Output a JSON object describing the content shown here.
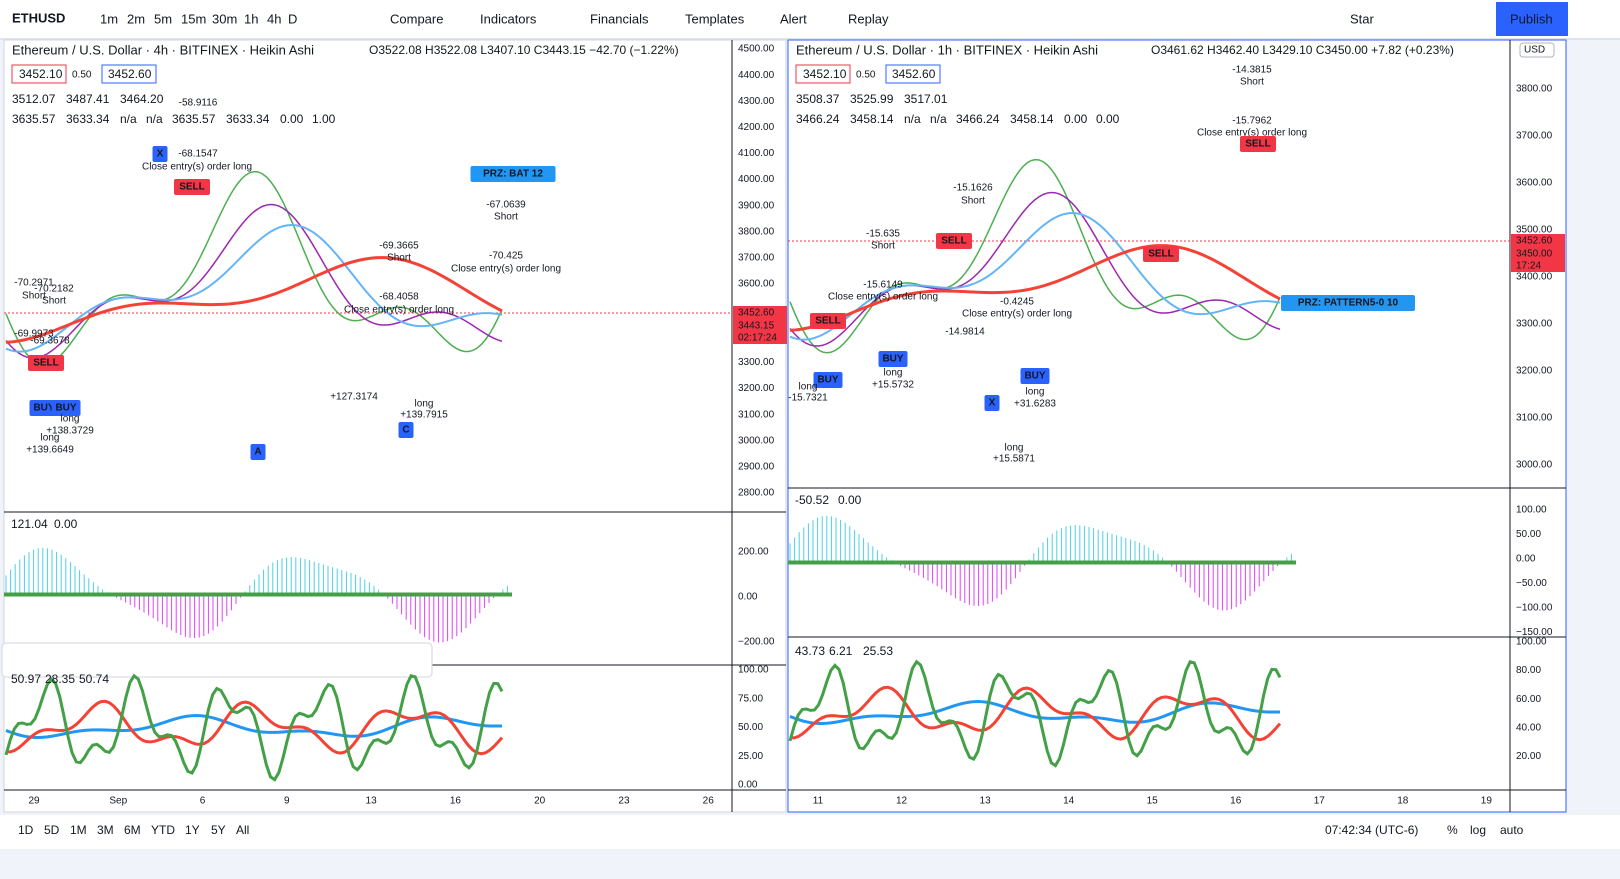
{
  "toolbar": {
    "symbol": "ETHUSD",
    "intervals": [
      "1m",
      "2m",
      "5m",
      "15m",
      "30m",
      "1h",
      "4h",
      "D"
    ],
    "buttons": [
      "Compare",
      "Indicators",
      "Financials",
      "Templates",
      "Alert",
      "Replay"
    ],
    "star": "Star",
    "publish": "Publish"
  },
  "left_chart": {
    "title": "Ethereum / U.S. Dollar · 4h · BITFINEX · Heikin Ashi",
    "ohlc": "O3522.08 H3522.08 L3407.10 C3443.15 −42.70 (−1.22%)",
    "bid": "3452.10",
    "spread": "0.50",
    "ask": "3452.60",
    "ind1": [
      "3512.07",
      "3487.41",
      "3464.20"
    ],
    "ind2": [
      "3635.57",
      "3633.34",
      "n/a",
      "n/a",
      "3635.57",
      "3633.34",
      "0.00",
      "1.00"
    ],
    "price_axis": [
      "4500.00",
      "4400.00",
      "4300.00",
      "4200.00",
      "4100.00",
      "4000.00",
      "3900.00",
      "3800.00",
      "3700.00",
      "3600.00",
      "3500.00",
      "3400.00",
      "3300.00",
      "3200.00",
      "3100.00",
      "3000.00",
      "2900.00",
      "2800.00"
    ],
    "price_tags": [
      "3452.60",
      "3443.15",
      "02:17:24"
    ],
    "osc1_legend": [
      "121.04",
      "0.00"
    ],
    "osc1_axis": [
      "200.00",
      "0.00",
      "−200.00"
    ],
    "osc2_legend": [
      "50.97",
      "28.35",
      "50.74"
    ],
    "osc2_axis": [
      "100.00",
      "75.00",
      "50.00",
      "25.00",
      "0.00"
    ],
    "time_axis": [
      "29",
      "Sep",
      "6",
      "9",
      "13",
      "16",
      "20",
      "23",
      "26"
    ],
    "annotations": [
      "-58.9116",
      "-68.1547",
      "Close entry(s) order long",
      "SELL",
      "X",
      "A",
      "C",
      "PRZ: BAT 12",
      "-67.0639",
      "Short",
      "-70.425",
      "Close entry(s) order long",
      "-69.3665",
      "Short",
      "-68.4058",
      "Close entry(s) order long",
      "BUY",
      "BUY",
      "long",
      "+138.3729",
      "long",
      "+139.6649",
      "+127.3174",
      "long",
      "+139.7915",
      "-70.2971",
      "Short",
      "-69.9973",
      "SELL",
      "-69.3678",
      "-70.2182",
      "Short"
    ]
  },
  "right_chart": {
    "title": "Ethereum / U.S. Dollar · 1h · BITFINEX · Heikin Ashi",
    "ohlc": "O3461.62 H3462.40 L3429.10 C3450.00 +7.82 (+0.23%)",
    "bid": "3452.10",
    "spread": "0.50",
    "ask": "3452.60",
    "ind1": [
      "3508.37",
      "3525.99",
      "3517.01"
    ],
    "ind2": [
      "3466.24",
      "3458.14",
      "n/a",
      "n/a",
      "3466.24",
      "3458.14",
      "0.00",
      "0.00"
    ],
    "currency": "USD",
    "price_axis": [
      "3800.00",
      "3700.00",
      "3600.00",
      "3500.00",
      "3400.00",
      "3300.00",
      "3200.00",
      "3100.00",
      "3000.00"
    ],
    "price_tags": [
      "3452.60",
      "3450.00",
      "17:24"
    ],
    "osc1_legend": [
      "-50.52",
      "0.00"
    ],
    "osc1_axis": [
      "100.00",
      "50.00",
      "0.00",
      "−50.00",
      "−100.00",
      "−150.00"
    ],
    "osc2_legend": [
      "43.73",
      "6.21",
      "25.53"
    ],
    "osc2_axis": [
      "100.00",
      "80.00",
      "60.00",
      "40.00",
      "20.00"
    ],
    "time_axis": [
      "11",
      "12",
      "13",
      "14",
      "15",
      "16",
      "17",
      "18",
      "19"
    ],
    "annotations": [
      "-14.3815",
      "Short",
      "-15.7962",
      "Close entry(s) order long",
      "SELL",
      "-15.1626",
      "Short",
      "-15.635",
      "Short",
      "-15.6149",
      "Close entry(s) order long",
      "SELL",
      "SELL",
      "BUY",
      "long",
      "+15.5732",
      "PRZ: PATTERN5-0 10",
      "X",
      "long",
      "+15.5871",
      "long",
      "+31.6283",
      "-15.7321",
      "SELL",
      "BUY",
      "-14.9814",
      "-0.4245",
      "Close entry(s) order long",
      "BUY",
      "long"
    ]
  },
  "bottom_bar": {
    "ranges": [
      "1D",
      "5D",
      "1M",
      "3M",
      "6M",
      "YTD",
      "1Y",
      "5Y",
      "All"
    ],
    "clock": "07:42:34 (UTC-6)",
    "scale": [
      "%",
      "log",
      "auto"
    ]
  }
}
